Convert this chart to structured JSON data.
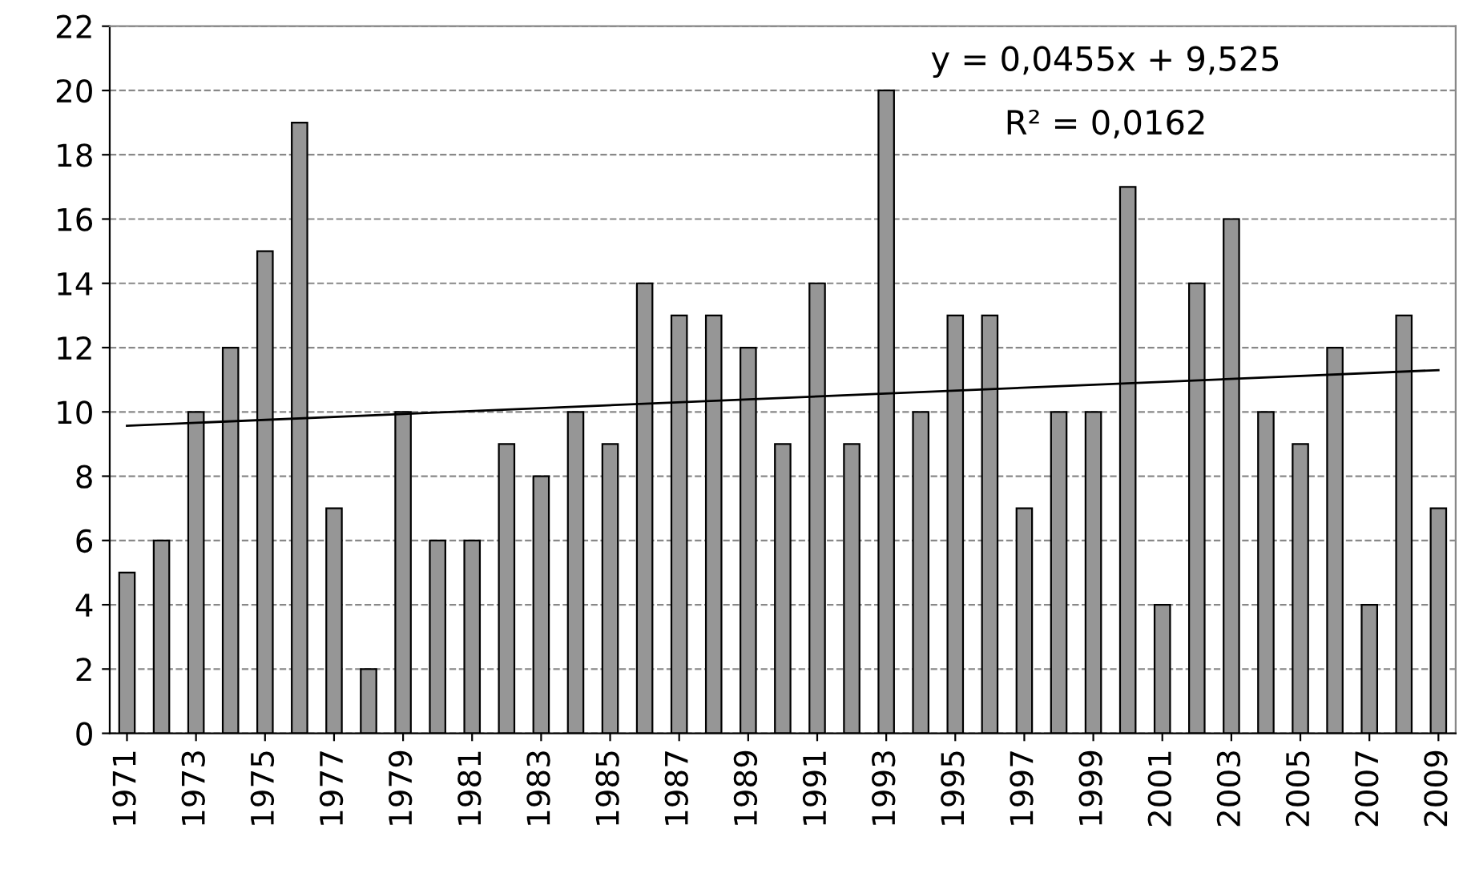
{
  "chart_data": {
    "type": "bar",
    "x": [
      1971,
      1972,
      1973,
      1974,
      1975,
      1976,
      1977,
      1978,
      1979,
      1980,
      1981,
      1982,
      1983,
      1984,
      1985,
      1986,
      1987,
      1988,
      1989,
      1990,
      1991,
      1992,
      1993,
      1994,
      1995,
      1996,
      1997,
      1998,
      1999,
      2000,
      2001,
      2002,
      2003,
      2004,
      2005,
      2006,
      2007,
      2008,
      2009
    ],
    "series": [
      {
        "color": "#969696",
        "values": [
          5,
          6,
          10,
          12,
          15,
          19,
          7,
          2,
          10,
          6,
          6,
          9,
          8,
          10,
          9,
          14,
          13,
          13,
          12,
          9,
          14,
          9,
          20,
          10,
          13,
          13,
          7,
          10,
          10,
          17,
          4,
          14,
          16,
          10,
          9,
          12,
          4,
          13,
          7
        ]
      },
      {
        "type": "line",
        "color": "#000000",
        "x": [
          1971,
          2009
        ],
        "values": [
          9.57,
          11.3
        ]
      }
    ],
    "xlim": [
      1970.5,
      2009.5
    ],
    "xticks": [
      1971,
      1973,
      1975,
      1977,
      1979,
      1981,
      1983,
      1985,
      1987,
      1989,
      1991,
      1993,
      1995,
      1997,
      1999,
      2001,
      2003,
      2005,
      2007,
      2009
    ],
    "ylim": [
      0,
      22
    ],
    "yticks": [
      0,
      2,
      4,
      6,
      8,
      10,
      12,
      14,
      16,
      18,
      20,
      22
    ],
    "grid": "y",
    "line_style": "solid",
    "annotations": [
      "y = 0,0455x + 9,525",
      "R² = 0,0162"
    ]
  }
}
